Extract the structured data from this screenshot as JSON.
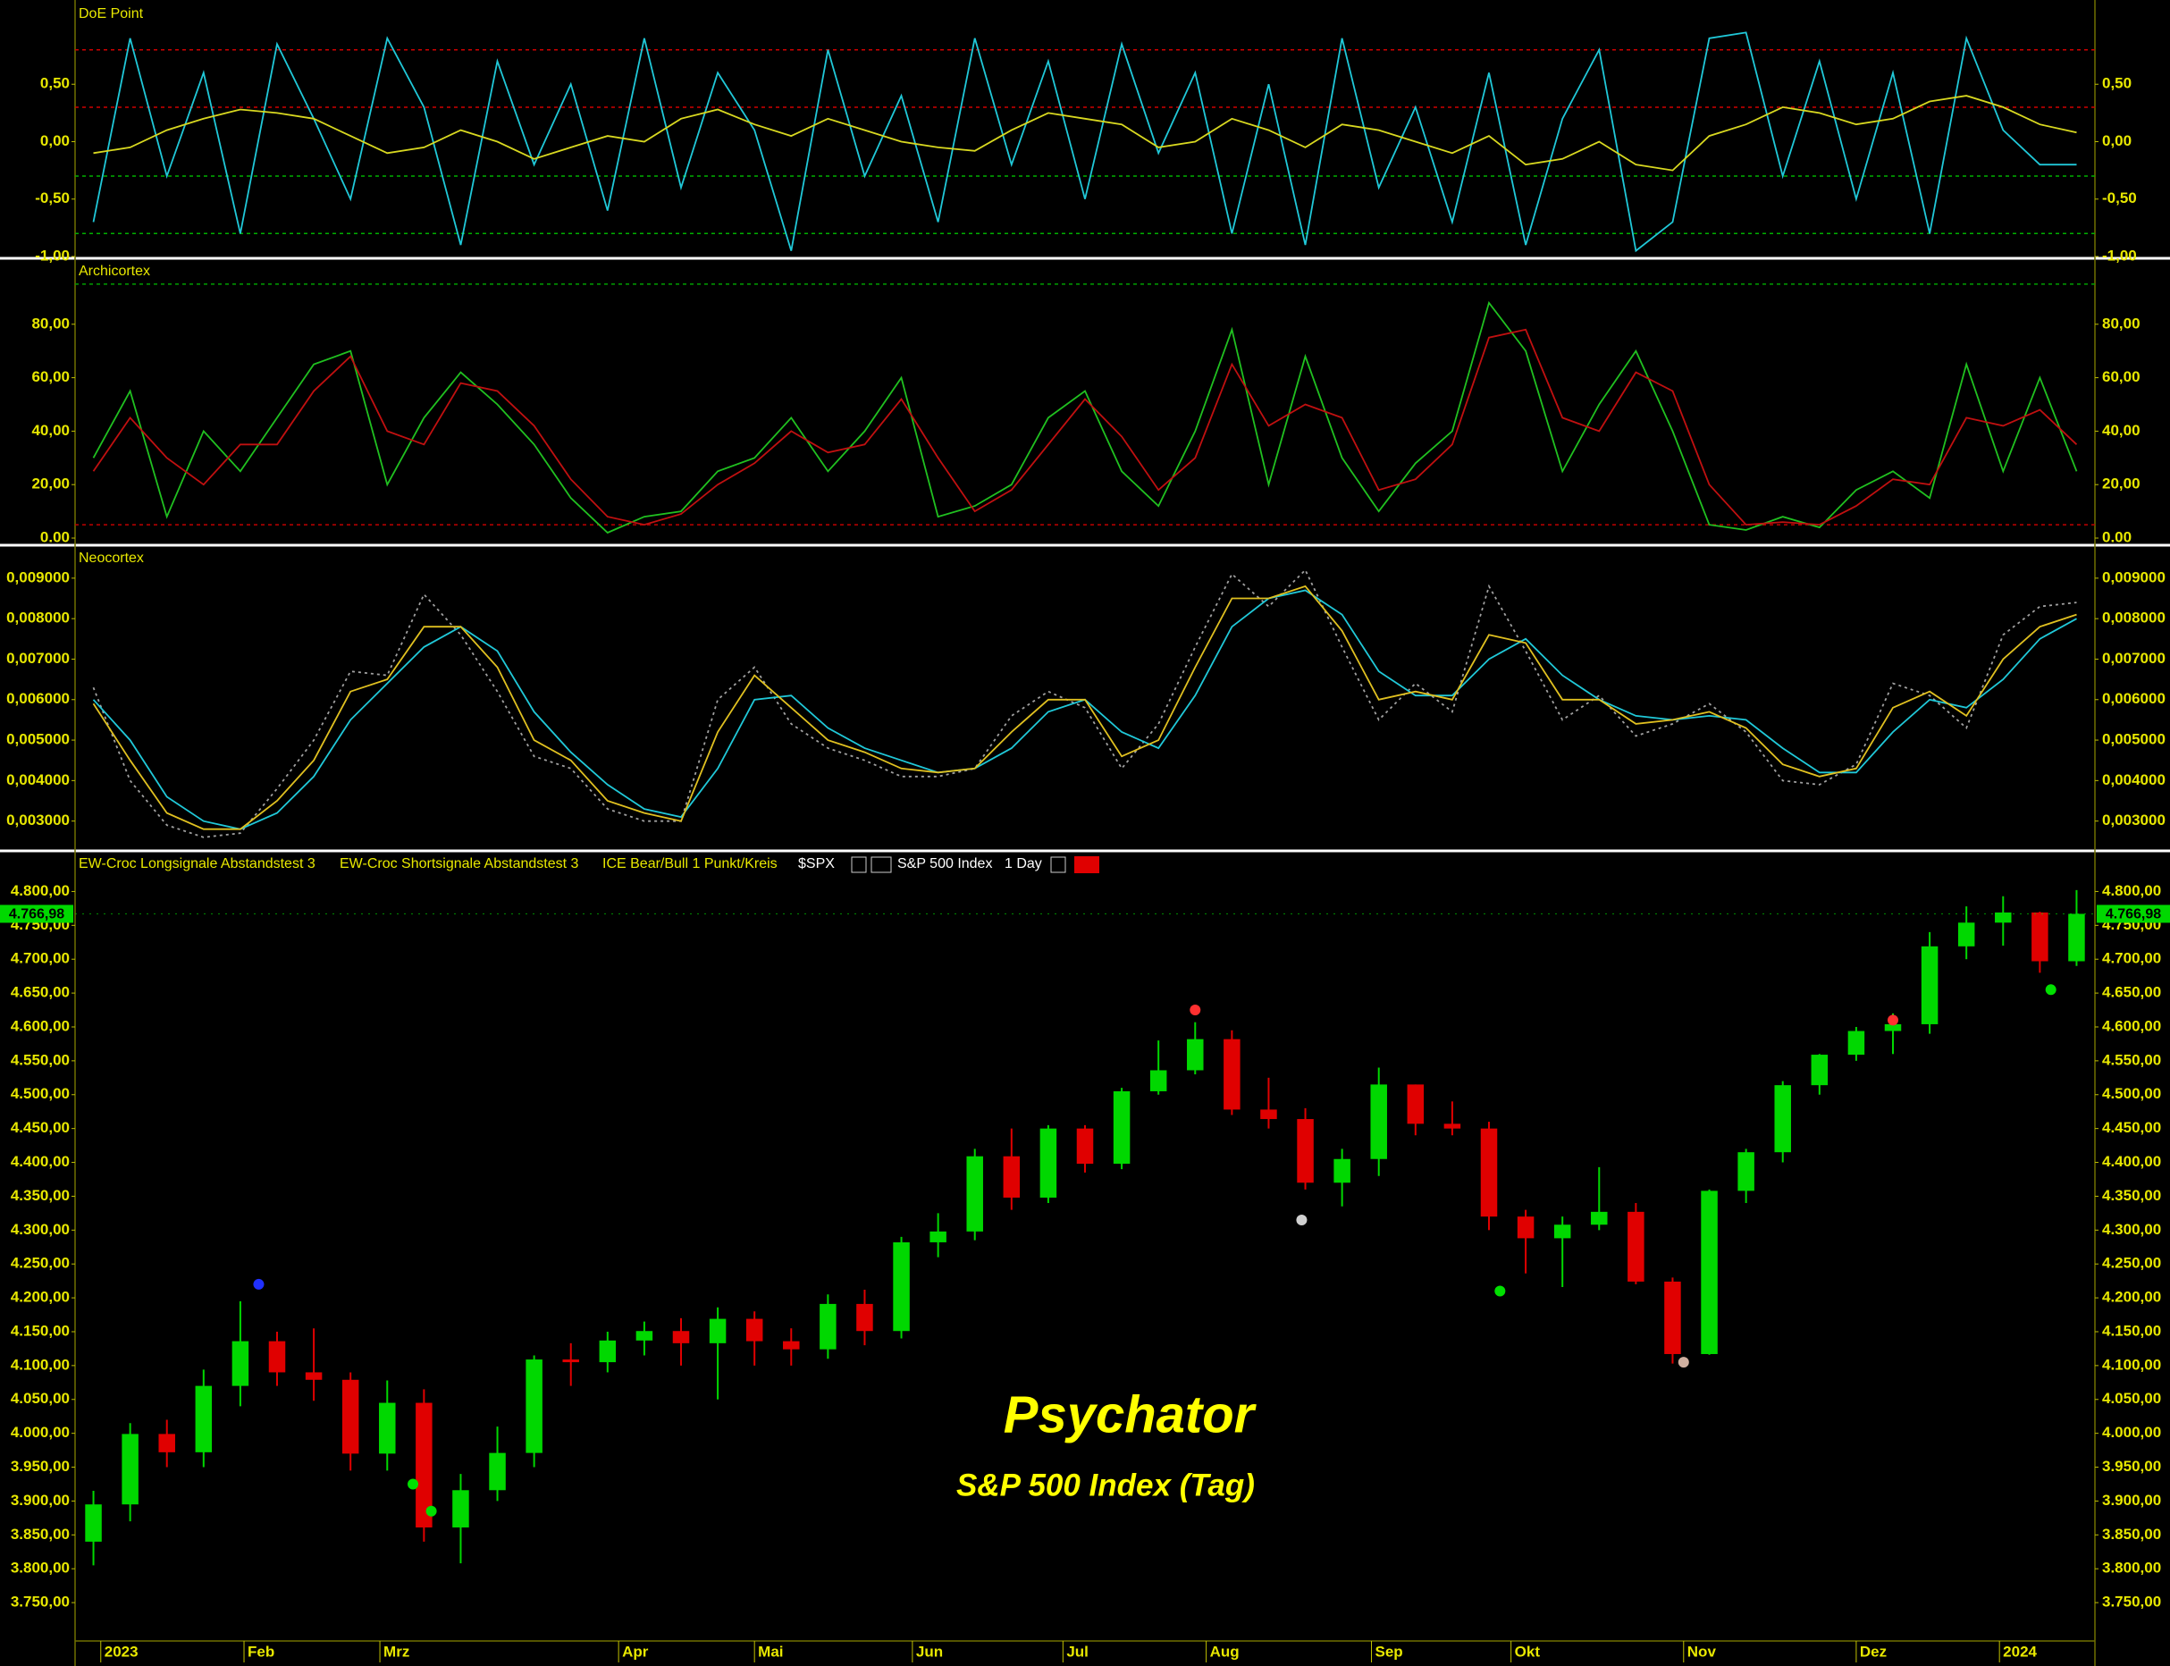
{
  "chart_data": [
    {
      "type": "line",
      "title": "DoE Point",
      "xlim": [
        -0.5,
        54.5
      ],
      "ylim": [
        -1.0,
        1.21
      ],
      "yticks": [
        {
          "value": 0.5,
          "label": "0,50"
        },
        {
          "value": 0,
          "label": "0,00"
        },
        {
          "value": -0.5,
          "label": "-0,50"
        },
        {
          "value": -1,
          "label": "-1,00"
        }
      ],
      "levels": [
        0.8,
        0.3,
        -0.3,
        -0.8
      ],
      "level_colors": [
        "#d00000",
        "#d00000",
        "#00b000",
        "#00b000"
      ],
      "series": [
        {
          "color": "#20c8d8",
          "values": [
            -0.7,
            0.9,
            -0.3,
            0.6,
            -0.8,
            0.85,
            0.2,
            -0.5,
            0.9,
            0.3,
            -0.9,
            0.7,
            -0.2,
            0.5,
            -0.6,
            0.9,
            -0.4,
            0.6,
            0.1,
            -0.95,
            0.8,
            -0.3,
            0.4,
            -0.7,
            0.9,
            -0.2,
            0.7,
            -0.5,
            0.85,
            -0.1,
            0.6,
            -0.8,
            0.5,
            -0.9,
            0.9,
            -0.4,
            0.3,
            -0.7,
            0.6,
            -0.9,
            0.2,
            0.8,
            -0.95,
            -0.7,
            0.9,
            0.95,
            -0.3,
            0.7,
            -0.5,
            0.6,
            -0.8,
            0.9,
            0.1,
            -0.2,
            -0.2
          ]
        },
        {
          "color": "#d8d820",
          "values": [
            -0.1,
            -0.05,
            0.1,
            0.2,
            0.28,
            0.25,
            0.2,
            0.05,
            -0.1,
            -0.05,
            0.1,
            0.0,
            -0.15,
            -0.05,
            0.05,
            0.0,
            0.2,
            0.28,
            0.15,
            0.05,
            0.2,
            0.1,
            0.0,
            -0.05,
            -0.08,
            0.1,
            0.25,
            0.2,
            0.15,
            -0.05,
            0.0,
            0.2,
            0.1,
            -0.05,
            0.15,
            0.1,
            0.0,
            -0.1,
            0.05,
            -0.2,
            -0.15,
            0.0,
            -0.2,
            -0.25,
            0.05,
            0.15,
            0.3,
            0.25,
            0.15,
            0.2,
            0.35,
            0.4,
            0.3,
            0.15,
            0.08
          ]
        }
      ]
    },
    {
      "type": "line",
      "title": "Archicortex",
      "xlim": [
        -0.5,
        54.5
      ],
      "ylim": [
        -2,
        104
      ],
      "yticks": [
        {
          "value": 80,
          "label": "80,00"
        },
        {
          "value": 60,
          "label": "60,00"
        },
        {
          "value": 40,
          "label": "40,00"
        },
        {
          "value": 20,
          "label": "20,00"
        },
        {
          "value": 0,
          "label": "0.00"
        }
      ],
      "levels": [
        95,
        5
      ],
      "level_colors": [
        "#00a000",
        "#c00000"
      ],
      "series": [
        {
          "color": "#20c020",
          "values": [
            30,
            55,
            8,
            40,
            25,
            45,
            65,
            70,
            20,
            45,
            62,
            50,
            35,
            15,
            2,
            8,
            10,
            25,
            30,
            45,
            25,
            40,
            60,
            8,
            12,
            20,
            45,
            55,
            25,
            12,
            40,
            78,
            20,
            68,
            30,
            10,
            28,
            40,
            88,
            70,
            25,
            50,
            70,
            40,
            5,
            3,
            8,
            4,
            18,
            25,
            15,
            65,
            25,
            60,
            25
          ]
        },
        {
          "color": "#c01010",
          "values": [
            25,
            45,
            30,
            20,
            35,
            35,
            55,
            68,
            40,
            35,
            58,
            55,
            42,
            22,
            8,
            5,
            9,
            20,
            28,
            40,
            32,
            35,
            52,
            30,
            10,
            18,
            35,
            52,
            38,
            18,
            30,
            65,
            42,
            50,
            45,
            18,
            22,
            35,
            75,
            78,
            45,
            40,
            62,
            55,
            20,
            5,
            6,
            5,
            12,
            22,
            20,
            45,
            42,
            48,
            35
          ]
        }
      ]
    },
    {
      "type": "line",
      "title": "Neocortex",
      "xlim": [
        -0.5,
        54.5
      ],
      "ylim": [
        0.00233,
        0.00977
      ],
      "yticks": [
        {
          "value": 0.009,
          "label": "0,009000"
        },
        {
          "value": 0.008,
          "label": "0,008000"
        },
        {
          "value": 0.007,
          "label": "0,007000"
        },
        {
          "value": 0.006,
          "label": "0,006000"
        },
        {
          "value": 0.005,
          "label": "0,005000"
        },
        {
          "value": 0.004,
          "label": "0,004000"
        },
        {
          "value": 0.003,
          "label": "0,003000"
        }
      ],
      "series": [
        {
          "color": "#a0a0a0",
          "dash": true,
          "values": [
            0.0063,
            0.004,
            0.0029,
            0.0026,
            0.0027,
            0.0038,
            0.005,
            0.0067,
            0.0066,
            0.0086,
            0.0076,
            0.0062,
            0.0046,
            0.0043,
            0.0033,
            0.003,
            0.003,
            0.006,
            0.0068,
            0.0054,
            0.0048,
            0.0045,
            0.0041,
            0.0041,
            0.0043,
            0.0056,
            0.0062,
            0.0058,
            0.0043,
            0.0054,
            0.0073,
            0.0091,
            0.0083,
            0.0092,
            0.0073,
            0.0055,
            0.0064,
            0.0057,
            0.0088,
            0.0072,
            0.0055,
            0.0061,
            0.0051,
            0.0054,
            0.0059,
            0.0052,
            0.004,
            0.0039,
            0.0044,
            0.0064,
            0.0061,
            0.0053,
            0.0076,
            0.0083,
            0.0084
          ]
        },
        {
          "color": "#20c8d8",
          "values": [
            0.006,
            0.005,
            0.0036,
            0.003,
            0.0028,
            0.0032,
            0.0041,
            0.0055,
            0.0064,
            0.0073,
            0.0078,
            0.0072,
            0.0057,
            0.0047,
            0.0039,
            0.0033,
            0.0031,
            0.0043,
            0.006,
            0.0061,
            0.0053,
            0.0048,
            0.0045,
            0.0042,
            0.0043,
            0.0048,
            0.0057,
            0.006,
            0.0052,
            0.0048,
            0.0061,
            0.0078,
            0.0085,
            0.0087,
            0.0081,
            0.0067,
            0.0061,
            0.0061,
            0.007,
            0.0075,
            0.0066,
            0.006,
            0.0056,
            0.0055,
            0.0056,
            0.0055,
            0.0048,
            0.0042,
            0.0042,
            0.0052,
            0.006,
            0.0058,
            0.0065,
            0.0075,
            0.008
          ]
        },
        {
          "color": "#e0c020",
          "values": [
            0.0059,
            0.0045,
            0.0032,
            0.0028,
            0.0028,
            0.0035,
            0.0045,
            0.0062,
            0.0065,
            0.0078,
            0.0078,
            0.0068,
            0.005,
            0.0045,
            0.0035,
            0.0032,
            0.003,
            0.0052,
            0.0066,
            0.0058,
            0.005,
            0.0047,
            0.0043,
            0.0042,
            0.0043,
            0.0052,
            0.006,
            0.006,
            0.0046,
            0.005,
            0.0068,
            0.0085,
            0.0085,
            0.0088,
            0.0077,
            0.006,
            0.0062,
            0.006,
            0.0076,
            0.0074,
            0.006,
            0.006,
            0.0054,
            0.0055,
            0.0057,
            0.0053,
            0.0044,
            0.0041,
            0.0043,
            0.0058,
            0.0062,
            0.0056,
            0.007,
            0.0078,
            0.0081
          ]
        }
      ]
    },
    {
      "type": "candlestick",
      "legend_items": [
        "EW-Croc Longsignale Abstandstest 3",
        "EW-Croc Shortsignale Abstandstest 3",
        "ICE Bear/Bull 1 Punkt/Kreis"
      ],
      "symbol": "$SPX",
      "instrument": "S&P 500 Index",
      "interval": "1 Day",
      "annotations": [
        "Psychator",
        "S&P 500 Index (Tag)"
      ],
      "last_price": {
        "value": 4766.98,
        "label": "4.766,98"
      },
      "up_color": "#00d800",
      "down_color": "#e00000",
      "xlim": [
        -0.5,
        54.5
      ],
      "ylim": [
        3696,
        4856
      ],
      "xticks": [
        {
          "value": 0.2,
          "label": "2023"
        },
        {
          "value": 4.1,
          "label": "Feb"
        },
        {
          "value": 7.8,
          "label": "Mrz"
        },
        {
          "value": 14.3,
          "label": "Apr"
        },
        {
          "value": 18,
          "label": "Mai"
        },
        {
          "value": 22.3,
          "label": "Jun"
        },
        {
          "value": 26.4,
          "label": "Jul"
        },
        {
          "value": 30.3,
          "label": "Aug"
        },
        {
          "value": 34.8,
          "label": "Sep"
        },
        {
          "value": 38.6,
          "label": "Okt"
        },
        {
          "value": 43.3,
          "label": "Nov"
        },
        {
          "value": 48,
          "label": "Dez"
        },
        {
          "value": 51.9,
          "label": "2024"
        }
      ],
      "yticks": [
        {
          "value": 4800,
          "label": "4.800,00"
        },
        {
          "value": 4750,
          "label": "4.750,00"
        },
        {
          "value": 4700,
          "label": "4.700,00"
        },
        {
          "value": 4650,
          "label": "4.650,00"
        },
        {
          "value": 4600,
          "label": "4.600,00"
        },
        {
          "value": 4550,
          "label": "4.550,00"
        },
        {
          "value": 4500,
          "label": "4.500,00"
        },
        {
          "value": 4450,
          "label": "4.450,00"
        },
        {
          "value": 4400,
          "label": "4.400,00"
        },
        {
          "value": 4350,
          "label": "4.350,00"
        },
        {
          "value": 4300,
          "label": "4.300,00"
        },
        {
          "value": 4250,
          "label": "4.250,00"
        },
        {
          "value": 4200,
          "label": "4.200,00"
        },
        {
          "value": 4150,
          "label": "4.150,00"
        },
        {
          "value": 4100,
          "label": "4.100,00"
        },
        {
          "value": 4050,
          "label": "4.050,00"
        },
        {
          "value": 4000,
          "label": "4.000,00"
        },
        {
          "value": 3950,
          "label": "3.950,00"
        },
        {
          "value": 3900,
          "label": "3.900,00"
        },
        {
          "value": 3850,
          "label": "3.850,00"
        },
        {
          "value": 3800,
          "label": "3.800,00"
        },
        {
          "value": 3750,
          "label": "3.750,00"
        }
      ],
      "open": [
        3840,
        3895,
        3999,
        3972,
        4070,
        4136,
        4090,
        4079,
        3970,
        4045,
        3861,
        3916,
        3971,
        4109,
        4105,
        4137,
        4151,
        4133,
        4169,
        4136,
        4124,
        4191,
        4151,
        4282,
        4298,
        4409,
        4348,
        4450,
        4398,
        4505,
        4536,
        4582,
        4478,
        4464,
        4370,
        4405,
        4515,
        4457,
        4450,
        4320,
        4288,
        4308,
        4327,
        4224,
        4117,
        4358,
        4415,
        4514,
        4559,
        4594,
        4604,
        4719,
        4754,
        4769,
        4697
      ],
      "high": [
        3915,
        4015,
        4020,
        4094,
        4195,
        4150,
        4155,
        4090,
        4078,
        4065,
        3940,
        4010,
        4115,
        4133,
        4150,
        4165,
        4170,
        4186,
        4180,
        4155,
        4205,
        4212,
        4290,
        4325,
        4420,
        4450,
        4455,
        4455,
        4510,
        4580,
        4607,
        4595,
        4525,
        4480,
        4420,
        4540,
        4515,
        4490,
        4460,
        4330,
        4320,
        4393,
        4340,
        4230,
        4360,
        4420,
        4520,
        4560,
        4600,
        4620,
        4740,
        4778,
        4793,
        4770,
        4802
      ],
      "low": [
        3805,
        3870,
        3950,
        3950,
        4040,
        4070,
        4048,
        3945,
        3945,
        3840,
        3808,
        3900,
        3950,
        4070,
        4090,
        4115,
        4100,
        4050,
        4100,
        4100,
        4110,
        4130,
        4140,
        4260,
        4285,
        4330,
        4340,
        4385,
        4390,
        4500,
        4530,
        4470,
        4450,
        4360,
        4335,
        4380,
        4440,
        4440,
        4300,
        4236,
        4216,
        4300,
        4220,
        4103,
        4116,
        4340,
        4400,
        4500,
        4550,
        4560,
        4590,
        4700,
        4720,
        4680,
        4690
      ],
      "close": [
        3895,
        3999,
        3972,
        4070,
        4136,
        4090,
        4079,
        3970,
        4045,
        3861,
        3916,
        3971,
        4109,
        4105,
        4137,
        4151,
        4133,
        4169,
        4136,
        4124,
        4191,
        4151,
        4282,
        4298,
        4409,
        4348,
        4450,
        4398,
        4505,
        4536,
        4582,
        4478,
        4464,
        4370,
        4405,
        4515,
        4457,
        4450,
        4320,
        4288,
        4308,
        4327,
        4224,
        4117,
        4358,
        4415,
        4514,
        4559,
        4594,
        4604,
        4719,
        4754,
        4769,
        4697,
        4766.98
      ],
      "signals": {
        "x": [
          4.5,
          8.7,
          9.2,
          30,
          32.9,
          38.3,
          43.3,
          49,
          53.3
        ],
        "values": [
          4220,
          3925,
          3885,
          4625,
          4315,
          4210,
          4105,
          4610,
          4655
        ],
        "colors": [
          "#2030ff",
          "#00e000",
          "#00e000",
          "#ff3030",
          "#d0d0d0",
          "#00e000",
          "#d0b0a0",
          "#ff3030",
          "#00e000"
        ]
      }
    }
  ]
}
